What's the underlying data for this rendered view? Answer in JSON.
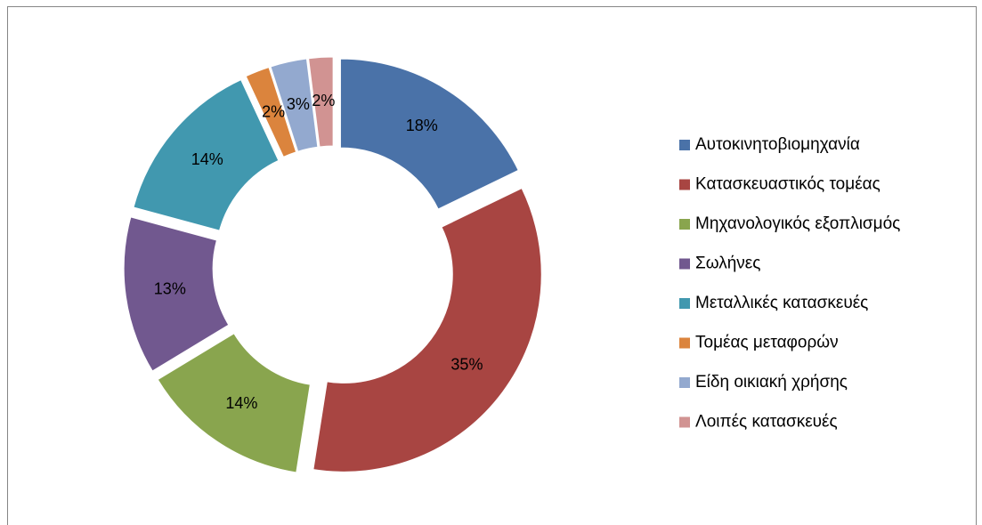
{
  "chart_data": {
    "type": "doughnut",
    "categories": [
      "Αυτοκινητοβιομηχανία",
      "Κατασκευαστικός τομέας",
      "Μηχανολογικός  εξοπλισμός",
      "Σωλήνες",
      "Μεταλλικές κατασκευές",
      "Τομέας μεταφορών",
      "Είδη οικιακή χρήσης",
      "Λοιπές κατασκευές"
    ],
    "values": [
      18,
      35,
      14,
      13,
      14,
      2,
      3,
      2
    ],
    "value_labels": [
      "18%",
      "35%",
      "14%",
      "13%",
      "14%",
      "2%",
      "3%",
      "2%"
    ],
    "colors": [
      "#4a72a8",
      "#a84542",
      "#89a54e",
      "#71588f",
      "#4198af",
      "#db843d",
      "#93a9cf",
      "#d19392"
    ],
    "legend": "right"
  }
}
